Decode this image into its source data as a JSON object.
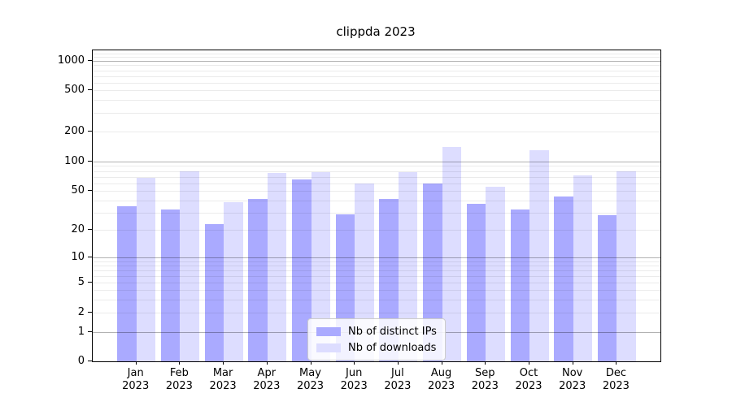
{
  "title": "clippda 2023",
  "legend": {
    "items": [
      {
        "label": "Nb of distinct IPs",
        "color": "#aaaaff"
      },
      {
        "label": "Nb of downloads",
        "color": "#ddddff"
      }
    ]
  },
  "chart_data": {
    "type": "bar",
    "title": "clippda 2023",
    "categories": [
      "Jan",
      "Feb",
      "Mar",
      "Apr",
      "May",
      "Jun",
      "Jul",
      "Aug",
      "Sep",
      "Oct",
      "Nov",
      "Dec"
    ],
    "year_label": "2023",
    "series": [
      {
        "name": "Nb of distinct IPs",
        "color": "#aaaaff",
        "values": [
          35,
          32,
          23,
          41,
          66,
          29,
          41,
          59,
          37,
          32,
          44,
          28
        ]
      },
      {
        "name": "Nb of downloads",
        "color": "#ddddff",
        "values": [
          68,
          80,
          38,
          76,
          78,
          60,
          78,
          140,
          55,
          130,
          72,
          80
        ]
      }
    ],
    "xlabel": "",
    "ylabel": "",
    "yscale": "symlog",
    "yticks": [
      0,
      1,
      2,
      5,
      10,
      20,
      50,
      100,
      200,
      500,
      1000
    ],
    "ylim": [
      0,
      1270
    ],
    "grid": "horizontal major and minor",
    "legend_position": "lower center"
  }
}
